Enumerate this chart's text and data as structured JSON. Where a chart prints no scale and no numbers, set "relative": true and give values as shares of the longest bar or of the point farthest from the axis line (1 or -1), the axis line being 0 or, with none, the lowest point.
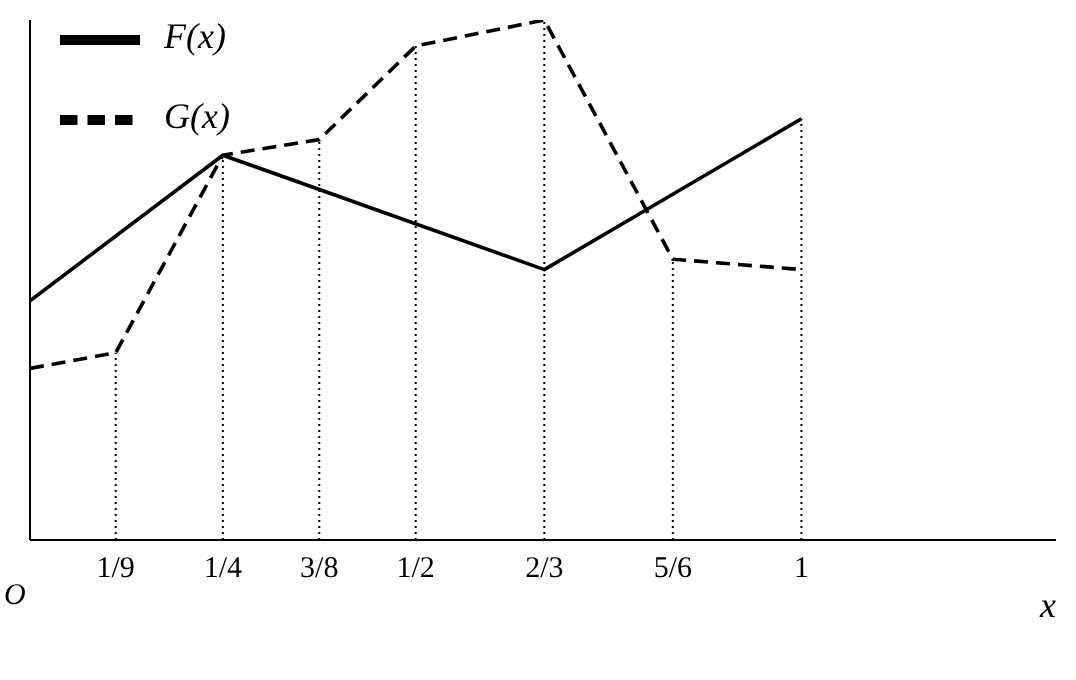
{
  "chart_data": {
    "type": "line",
    "relative": true,
    "xlabel": "x",
    "annotations": [
      "O"
    ],
    "xlim": [
      0,
      1.33
    ],
    "xticks": [
      {
        "value": 0.1111,
        "label": "1/9"
      },
      {
        "value": 0.25,
        "label": "1/4"
      },
      {
        "value": 0.375,
        "label": "3/8"
      },
      {
        "value": 0.5,
        "label": "1/2"
      },
      {
        "value": 0.6667,
        "label": "2/3"
      },
      {
        "value": 0.8333,
        "label": "5/6"
      },
      1
    ],
    "series": [
      {
        "name": "F(x)",
        "color": "#000000",
        "line_style": "solid",
        "x": [
          0,
          0.25,
          0.6667,
          1
        ],
        "values": [
          0.46,
          0.74,
          0.52,
          0.81
        ]
      },
      {
        "name": "G(x)",
        "color": "#000000",
        "line_style": "dashed",
        "x": [
          0,
          0.1111,
          0.25,
          0.375,
          0.5,
          0.6667,
          0.8333,
          1
        ],
        "values": [
          0.33,
          0.36,
          0.74,
          0.77,
          0.95,
          1,
          0.54,
          0.52
        ]
      }
    ],
    "ref_lines": [
      {
        "axis": "x",
        "value": 0.1111,
        "line_style": "dotted"
      },
      {
        "axis": "x",
        "value": 0.25,
        "line_style": "dotted"
      },
      {
        "axis": "x",
        "value": 0.375,
        "line_style": "dotted"
      },
      {
        "axis": "x",
        "value": 0.5,
        "line_style": "dotted"
      },
      {
        "axis": "x",
        "value": 0.6667,
        "line_style": "dotted"
      },
      {
        "axis": "x",
        "value": 0.8333,
        "line_style": "dotted"
      },
      {
        "axis": "x",
        "value": 1,
        "line_style": "dotted"
      }
    ],
    "legend": "top left",
    "marker": "none",
    "grid": false
  }
}
